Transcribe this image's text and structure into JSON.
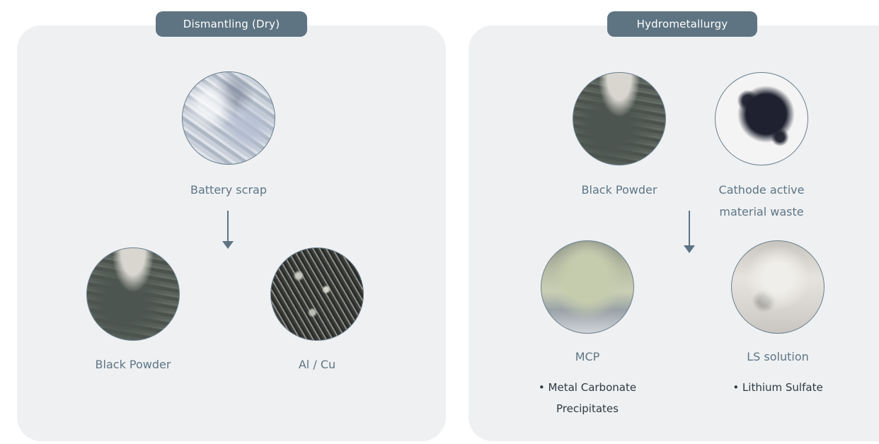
{
  "left_panel": {
    "title": "Dismantling (Dry)",
    "input": {
      "label": "Battery scrap",
      "icon": "battery-scrap-photo"
    },
    "outputs": [
      {
        "label": "Black Powder",
        "icon": "black-powder-photo"
      },
      {
        "label": "Al / Cu",
        "icon": "al-cu-photo"
      }
    ]
  },
  "right_panel": {
    "title": "Hydrometallurgy",
    "inputs": [
      {
        "label": "Black Powder",
        "icon": "black-powder-photo"
      },
      {
        "label_line1": "Cathode active",
        "label_line2": "material waste",
        "icon": "cathode-waste-photo"
      }
    ],
    "outputs": [
      {
        "label": "MCP",
        "note_line1": "• Metal Carbonate",
        "note_line2": "Precipitates",
        "icon": "mcp-photo"
      },
      {
        "label": "LS solution",
        "note_line1": "• Lithium Sulfate",
        "icon": "ls-solution-photo"
      }
    ]
  },
  "colors": {
    "panel_bg": "#eef0f2",
    "pill_bg": "#5e7482",
    "label_text": "#5f7584",
    "note_text": "#2f3940",
    "arrow": "#5d7383"
  }
}
